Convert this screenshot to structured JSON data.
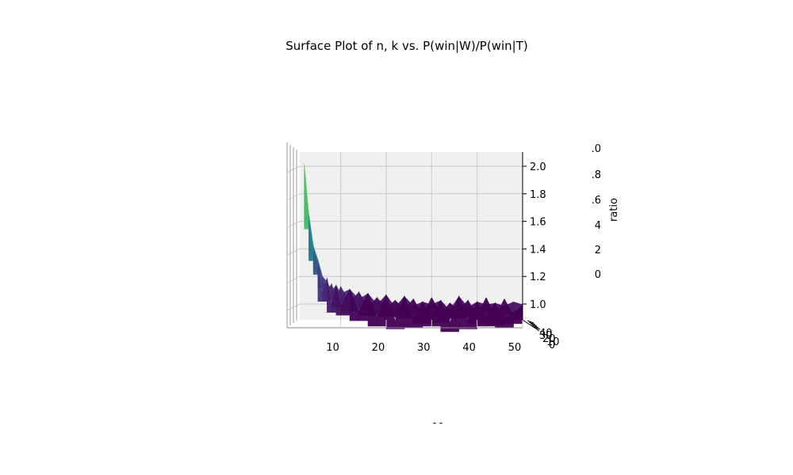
{
  "chart_data": {
    "type": "surface",
    "title": "Surface Plot of n, k vs. P(win|W)/P(win|T)",
    "xlabel": "",
    "ylabel": "",
    "zlabel": "ratio",
    "bottom_label": "- -",
    "colormap": "viridis",
    "x_ticks": [
      "10",
      "20",
      "30",
      "40",
      "50"
    ],
    "y_ticks": [
      "0",
      "10",
      "20",
      "30",
      "40"
    ],
    "z_ticks": [
      "1.0",
      "1.2",
      "1.4",
      "1.6",
      "1.8",
      "2.0"
    ],
    "clipped_axis_ticks": [
      ".0",
      ".8",
      ".6",
      "4",
      "2",
      "0"
    ],
    "xlim": [
      1,
      50
    ],
    "zlim": [
      0.85,
      2.1
    ],
    "grid": true,
    "front_profile": {
      "x": [
        2,
        3,
        4,
        5,
        6,
        7,
        8,
        9,
        10,
        12,
        14,
        16,
        18,
        20,
        22,
        24,
        26,
        28,
        30,
        32,
        34,
        36,
        38,
        40,
        42,
        44,
        46,
        48,
        50
      ],
      "ratio": [
        2.02,
        1.65,
        1.42,
        1.32,
        1.2,
        1.16,
        1.12,
        1.11,
        1.1,
        1.08,
        1.06,
        1.05,
        1.02,
        1.04,
        1.0,
        1.03,
        1.01,
        0.99,
        1.02,
        1.0,
        0.98,
        1.03,
        1.0,
        0.99,
        1.02,
        0.98,
        1.01,
        0.99,
        1.02
      ]
    }
  },
  "colors": {
    "pane": "#f0f0f0",
    "grid": "#c8c8c8",
    "axis": "#000000"
  }
}
